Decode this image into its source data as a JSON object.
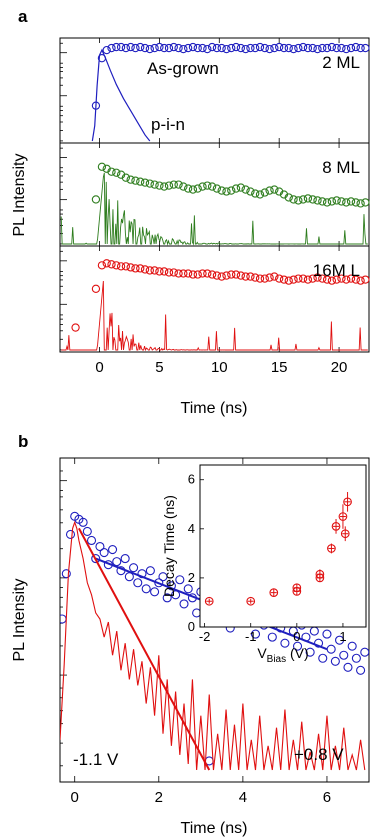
{
  "chart_data": [
    {
      "panel_label": "a",
      "type": "scatter",
      "xlabel": "Time (ns)",
      "ylabel": "PL Intensity",
      "xlim": [
        -3.3,
        22.5
      ],
      "xticks": [
        0,
        5,
        10,
        15,
        20
      ],
      "subpanels": [
        {
          "label": "2 ML",
          "annotations": [
            "As-grown",
            "p-i-n"
          ],
          "series": [
            {
              "name": "As-grown",
              "marker": "open-circle",
              "color": "#1f1fbf",
              "x": [
                -0.3,
                0.2,
                0.6,
                1.0,
                1.4,
                1.8,
                2.2,
                2.6,
                3.0,
                3.4,
                3.8,
                4.2,
                4.6,
                5.0,
                5.4,
                5.8,
                6.2,
                6.6,
                7.0,
                7.4,
                7.8,
                8.2,
                8.6,
                9.0,
                9.4,
                9.8,
                10.2,
                10.6,
                11.0,
                11.4,
                11.8,
                12.2,
                12.6,
                13.0,
                13.4,
                13.8,
                14.2,
                14.6,
                15.0,
                15.4,
                15.8,
                16.2,
                16.6,
                17.0,
                17.4,
                17.8,
                18.2,
                18.6,
                19.0,
                19.4,
                19.8,
                20.2,
                20.6,
                21.0,
                21.4,
                21.8,
                22.2
              ],
              "y": [
                0.35,
                0.82,
                0.9,
                0.92,
                0.93,
                0.93,
                0.92,
                0.93,
                0.92,
                0.93,
                0.92,
                0.91,
                0.92,
                0.93,
                0.92,
                0.92,
                0.93,
                0.92,
                0.91,
                0.92,
                0.93,
                0.92,
                0.92,
                0.91,
                0.93,
                0.92,
                0.92,
                0.91,
                0.92,
                0.93,
                0.92,
                0.91,
                0.92,
                0.92,
                0.93,
                0.92,
                0.91,
                0.92,
                0.93,
                0.92,
                0.92,
                0.91,
                0.92,
                0.93,
                0.92,
                0.92,
                0.91,
                0.92,
                0.92,
                0.93,
                0.92,
                0.92,
                0.91,
                0.92,
                0.93,
                0.92,
                0.92
              ]
            },
            {
              "name": "p-i-n",
              "marker": "line",
              "color": "#1f1fbf",
              "x": [
                -0.6,
                -0.4,
                -0.2,
                0.0,
                0.2,
                0.5,
                0.9,
                1.4,
                2.0,
                2.6,
                3.2,
                3.8,
                4.2
              ],
              "y": [
                0.0,
                0.15,
                0.55,
                0.85,
                0.9,
                0.82,
                0.7,
                0.56,
                0.42,
                0.3,
                0.18,
                0.06,
                0.0
              ]
            }
          ]
        },
        {
          "label": "8 ML",
          "series": [
            {
              "name": "As-grown",
              "marker": "open-circle",
              "color": "#2e7d1e",
              "x": [
                -0.3,
                0.2,
                0.6,
                1.0,
                1.4,
                1.8,
                2.2,
                2.6,
                3.0,
                3.4,
                3.8,
                4.2,
                4.6,
                5.0,
                5.4,
                5.8,
                6.2,
                6.6,
                7.0,
                7.4,
                7.8,
                8.2,
                8.6,
                9.0,
                9.4,
                9.8,
                10.2,
                10.6,
                11.0,
                11.4,
                11.8,
                12.2,
                12.6,
                13.0,
                13.4,
                13.8,
                14.2,
                14.6,
                15.0,
                15.4,
                15.8,
                16.2,
                16.6,
                17.0,
                17.4,
                17.8,
                18.2,
                18.6,
                19.0,
                19.4,
                19.8,
                20.2,
                20.6,
                21.0,
                21.4,
                21.8,
                22.2
              ],
              "y": [
                0.45,
                0.78,
                0.76,
                0.73,
                0.72,
                0.7,
                0.67,
                0.65,
                0.64,
                0.63,
                0.62,
                0.61,
                0.6,
                0.59,
                0.58,
                0.59,
                0.6,
                0.6,
                0.58,
                0.56,
                0.55,
                0.56,
                0.58,
                0.59,
                0.58,
                0.56,
                0.54,
                0.53,
                0.54,
                0.56,
                0.57,
                0.55,
                0.53,
                0.51,
                0.5,
                0.52,
                0.54,
                0.55,
                0.53,
                0.5,
                0.47,
                0.45,
                0.44,
                0.45,
                0.46,
                0.45,
                0.44,
                0.43,
                0.42,
                0.43,
                0.44,
                0.43,
                0.42,
                0.43,
                0.42,
                0.41,
                0.42
              ]
            }
          ]
        },
        {
          "label": "16M L",
          "series": [
            {
              "name": "As-grown",
              "marker": "open-circle",
              "color": "#e01010",
              "x": [
                -2.0,
                -0.3,
                0.2,
                0.6,
                1.0,
                1.4,
                1.8,
                2.2,
                2.6,
                3.0,
                3.4,
                3.8,
                4.2,
                4.6,
                5.0,
                5.4,
                5.8,
                6.2,
                6.6,
                7.0,
                7.4,
                7.8,
                8.2,
                8.6,
                9.0,
                9.4,
                9.8,
                10.2,
                10.6,
                11.0,
                11.4,
                11.8,
                12.2,
                12.6,
                13.0,
                13.4,
                13.8,
                14.2,
                14.6,
                15.0,
                15.4,
                15.8,
                16.2,
                16.6,
                17.0,
                17.4,
                17.8,
                18.2,
                18.6,
                19.0,
                19.4,
                19.8,
                20.2,
                20.6,
                21.0,
                21.4,
                21.8,
                22.2
              ],
              "y": [
                0.22,
                0.6,
                0.83,
                0.85,
                0.84,
                0.83,
                0.82,
                0.82,
                0.81,
                0.8,
                0.8,
                0.79,
                0.78,
                0.78,
                0.77,
                0.77,
                0.76,
                0.76,
                0.75,
                0.75,
                0.75,
                0.74,
                0.74,
                0.75,
                0.75,
                0.74,
                0.73,
                0.72,
                0.73,
                0.74,
                0.74,
                0.73,
                0.72,
                0.72,
                0.71,
                0.7,
                0.7,
                0.71,
                0.72,
                0.7,
                0.69,
                0.68,
                0.69,
                0.7,
                0.7,
                0.69,
                0.7,
                0.71,
                0.7,
                0.69,
                0.68,
                0.69,
                0.7,
                0.69,
                0.7,
                0.69,
                0.68,
                0.69
              ]
            }
          ]
        }
      ]
    },
    {
      "panel_label": "b",
      "type": "scatter",
      "xlabel": "Time (ns)",
      "ylabel": "PL Intensity",
      "xlim": [
        -0.35,
        7.0
      ],
      "xticks": [
        0,
        2,
        4,
        6
      ],
      "annotations": [
        "-1.1 V",
        "+0.8 V"
      ],
      "series": [
        {
          "name": "+0.8 V",
          "marker": "open-circle",
          "color": "#1f1fbf",
          "x": [
            -0.3,
            -0.2,
            -0.1,
            0.0,
            0.1,
            0.2,
            0.3,
            0.4,
            0.5,
            0.6,
            0.7,
            0.8,
            0.9,
            1.0,
            1.1,
            1.2,
            1.3,
            1.4,
            1.5,
            1.6,
            1.7,
            1.8,
            1.9,
            2.0,
            2.1,
            2.2,
            2.3,
            2.4,
            2.5,
            2.6,
            2.7,
            2.8,
            2.9,
            3.0,
            3.1,
            3.2,
            3.3,
            3.4,
            3.5,
            3.6,
            3.7,
            3.8,
            3.9,
            4.0,
            4.1,
            4.2,
            4.3,
            4.4,
            4.5,
            4.6,
            4.7,
            4.8,
            4.9,
            5.0,
            5.1,
            5.2,
            5.3,
            5.4,
            5.5,
            5.6,
            5.7,
            5.8,
            5.9,
            6.0,
            6.1,
            6.2,
            6.3,
            6.4,
            6.5,
            6.6,
            6.7,
            6.8,
            6.9,
            3.2
          ],
          "y": [
            0.5,
            0.65,
            0.78,
            0.84,
            0.83,
            0.82,
            0.79,
            0.76,
            0.7,
            0.74,
            0.72,
            0.68,
            0.73,
            0.69,
            0.66,
            0.7,
            0.64,
            0.67,
            0.62,
            0.65,
            0.6,
            0.66,
            0.59,
            0.62,
            0.64,
            0.57,
            0.61,
            0.58,
            0.63,
            0.55,
            0.6,
            0.57,
            0.52,
            0.59,
            0.56,
            0.61,
            0.5,
            0.55,
            0.58,
            0.52,
            0.47,
            0.56,
            0.53,
            0.49,
            0.57,
            0.5,
            0.45,
            0.52,
            0.48,
            0.55,
            0.44,
            0.5,
            0.47,
            0.42,
            0.53,
            0.46,
            0.41,
            0.48,
            0.44,
            0.39,
            0.46,
            0.42,
            0.37,
            0.45,
            0.4,
            0.36,
            0.43,
            0.38,
            0.34,
            0.41,
            0.37,
            0.33,
            0.39,
            0.03
          ]
        },
        {
          "name": "-1.1 V",
          "marker": "line",
          "color": "#e01010",
          "x": [
            -0.35,
            -0.25,
            -0.15,
            -0.05,
            0.0,
            0.05,
            0.1,
            0.2,
            0.3,
            0.4,
            0.5,
            0.6,
            0.7,
            0.8,
            0.9,
            1.0,
            1.1,
            1.2,
            1.3,
            1.4,
            1.5,
            1.6,
            1.7,
            1.8,
            1.9,
            2.0,
            2.1,
            2.2,
            2.3,
            2.4,
            2.5,
            2.6,
            2.7,
            2.8,
            2.9,
            3.0,
            3.1,
            3.2,
            3.3,
            3.4,
            3.5,
            3.6,
            3.7,
            3.8,
            3.9,
            4.0,
            4.1,
            4.2,
            4.3,
            4.4,
            4.5,
            4.6,
            4.7,
            4.8,
            4.9,
            5.0,
            5.1,
            5.2,
            5.3,
            5.4,
            5.5,
            5.6,
            5.7,
            5.8,
            5.9,
            6.0,
            6.1,
            6.2,
            6.3,
            6.4,
            6.5,
            6.6,
            6.7,
            6.8,
            6.9
          ],
          "y": [
            0.1,
            0.35,
            0.65,
            0.8,
            0.82,
            0.8,
            0.76,
            0.7,
            0.62,
            0.58,
            0.52,
            0.5,
            0.44,
            0.49,
            0.38,
            0.46,
            0.33,
            0.42,
            0.3,
            0.4,
            0.28,
            0.36,
            0.22,
            0.34,
            0.18,
            0.38,
            0.12,
            0.3,
            0.08,
            0.26,
            0.05,
            0.22,
            0.02,
            0.3,
            0.0,
            0.18,
            0.0,
            0.25,
            0.0,
            0.12,
            0.0,
            0.2,
            0.0,
            0.15,
            0.0,
            0.22,
            0.0,
            0.1,
            0.0,
            0.18,
            0.0,
            0.08,
            0.0,
            0.14,
            0.0,
            0.2,
            0.0,
            0.1,
            0.0,
            0.16,
            0.0,
            0.06,
            0.0,
            0.12,
            0.0,
            0.18,
            0.0,
            0.08,
            0.0,
            0.14,
            0.0,
            0.05,
            0.0,
            0.1,
            0.0
          ]
        },
        {
          "name": "+0.8 V fit",
          "marker": "line",
          "color": "#1f1fbf",
          "x": [
            0.5,
            6.0
          ],
          "y": [
            0.7,
            0.4
          ]
        },
        {
          "name": "-1.1 V fit",
          "marker": "line",
          "color": "#e01010",
          "x": [
            0.1,
            3.2
          ],
          "y": [
            0.8,
            0.0
          ]
        }
      ],
      "inset": {
        "type": "scatter",
        "xlabel_main": "V",
        "xlabel_sub": "Bias",
        "xlabel_unit": " (V)",
        "ylabel": "Decay Time (ns)",
        "xlim": [
          -2.1,
          1.5
        ],
        "ylim": [
          0,
          6.6
        ],
        "xticks": [
          -2,
          -1,
          0,
          1
        ],
        "yticks": [
          0,
          2,
          4,
          6
        ],
        "color": "#e01010",
        "x": [
          -1.9,
          -1.0,
          -0.5,
          0.0,
          0.0,
          0.5,
          0.5,
          0.75,
          0.85,
          1.0,
          1.05,
          1.1
        ],
        "y": [
          1.05,
          1.05,
          1.4,
          1.45,
          1.6,
          2.0,
          2.15,
          3.2,
          4.1,
          4.5,
          3.8,
          5.1
        ],
        "yerr": [
          0.1,
          0.1,
          0.15,
          0.15,
          0.15,
          0.15,
          0.2,
          0.2,
          0.3,
          0.5,
          0.3,
          0.4
        ]
      }
    }
  ]
}
